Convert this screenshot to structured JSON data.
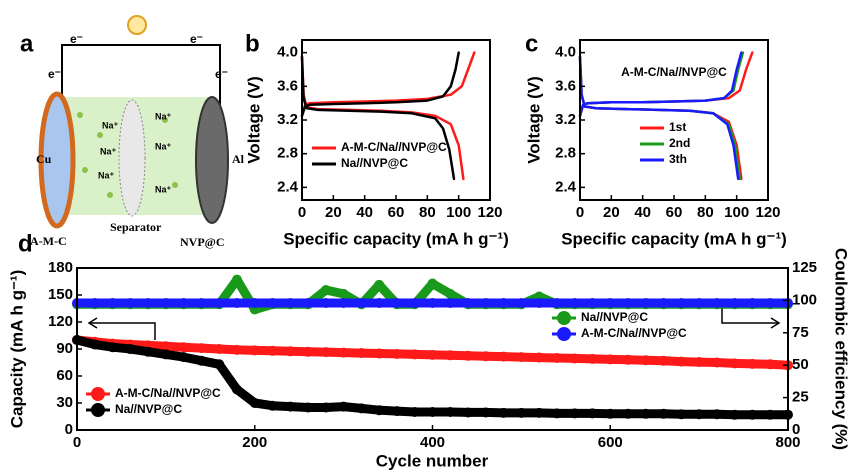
{
  "diagram": {
    "label": "a",
    "electron": "e⁻",
    "sodium": "Na⁺",
    "anode": "Cu",
    "cathode": "Al",
    "separator": "Separator",
    "anode_material": "A-M-C",
    "cathode_material": "NVP@C"
  },
  "chart_data": [
    {
      "type": "line",
      "label": "b",
      "xlabel": "Specific capacity (mA h g⁻¹)",
      "ylabel": "Voltage (V)",
      "xlim": [
        0,
        120
      ],
      "xticks": [
        0,
        20,
        40,
        60,
        80,
        100,
        120
      ],
      "ylim": [
        2.25,
        4.15
      ],
      "yticks": [
        2.4,
        2.8,
        3.2,
        3.6,
        {
          "value": 4,
          "label": "4.0"
        }
      ],
      "series": [
        {
          "name": "A-M-C/Na//NVP@C",
          "color": "#ff1a1a",
          "x": [
            0,
            2,
            5,
            20,
            40,
            60,
            80,
            95,
            102,
            106,
            110,
            null,
            0,
            1,
            3,
            10,
            30,
            50,
            70,
            85,
            95,
            100,
            103
          ],
          "values": [
            3.25,
            3.38,
            3.4,
            3.41,
            3.42,
            3.43,
            3.45,
            3.5,
            3.6,
            3.8,
            4.0,
            null,
            3.95,
            3.5,
            3.35,
            3.33,
            3.32,
            3.31,
            3.29,
            3.25,
            3.15,
            2.9,
            2.5
          ]
        },
        {
          "name": "Na//NVP@C",
          "color": "#000000",
          "x": [
            0,
            2,
            5,
            20,
            40,
            60,
            80,
            90,
            95,
            98,
            100,
            null,
            0,
            1,
            3,
            10,
            30,
            50,
            70,
            85,
            90,
            94,
            97
          ],
          "values": [
            3.25,
            3.36,
            3.38,
            3.39,
            3.4,
            3.41,
            3.43,
            3.48,
            3.6,
            3.8,
            4.0,
            null,
            3.95,
            3.45,
            3.34,
            3.32,
            3.31,
            3.3,
            3.28,
            3.22,
            3.1,
            2.85,
            2.5
          ]
        }
      ]
    },
    {
      "type": "line",
      "label": "c",
      "xlabel": "Specific capacity (mA h g⁻¹)",
      "ylabel": "Voltage (V)",
      "annotation": "A-M-C/Na//NVP@C",
      "xlim": [
        0,
        120
      ],
      "xticks": [
        0,
        20,
        40,
        60,
        80,
        100,
        120
      ],
      "ylim": [
        2.25,
        4.15
      ],
      "yticks": [
        2.4,
        2.8,
        3.2,
        3.6,
        {
          "value": 4,
          "label": "4.0"
        }
      ],
      "series": [
        {
          "name": "1st",
          "color": "#ff1a1a",
          "x": [
            0,
            2,
            5,
            20,
            40,
            60,
            80,
            95,
            102,
            106,
            110,
            null,
            0,
            1,
            3,
            10,
            30,
            50,
            70,
            85,
            95,
            100,
            103
          ],
          "values": [
            3.25,
            3.38,
            3.4,
            3.41,
            3.41,
            3.42,
            3.43,
            3.46,
            3.55,
            3.8,
            4.0,
            null,
            3.95,
            3.5,
            3.36,
            3.34,
            3.33,
            3.32,
            3.31,
            3.28,
            3.18,
            2.9,
            2.5
          ]
        },
        {
          "name": "2nd",
          "color": "#1a9a1a",
          "x": [
            0,
            2,
            5,
            20,
            40,
            60,
            80,
            92,
            98,
            101,
            104,
            null,
            0,
            1,
            3,
            10,
            30,
            50,
            70,
            85,
            95,
            99,
            102
          ],
          "values": [
            3.25,
            3.38,
            3.4,
            3.41,
            3.41,
            3.42,
            3.43,
            3.46,
            3.55,
            3.8,
            4.0,
            null,
            3.95,
            3.5,
            3.36,
            3.34,
            3.33,
            3.32,
            3.31,
            3.28,
            3.15,
            2.9,
            2.5
          ]
        },
        {
          "name": "3th",
          "color": "#1a1aff",
          "x": [
            0,
            2,
            5,
            20,
            40,
            60,
            80,
            92,
            97,
            100,
            103,
            null,
            0,
            1,
            3,
            10,
            30,
            50,
            70,
            85,
            94,
            98,
            101
          ],
          "values": [
            3.25,
            3.38,
            3.4,
            3.41,
            3.41,
            3.42,
            3.43,
            3.46,
            3.55,
            3.8,
            4.0,
            null,
            3.95,
            3.5,
            3.36,
            3.34,
            3.33,
            3.32,
            3.31,
            3.28,
            3.15,
            2.9,
            2.5
          ]
        }
      ]
    },
    {
      "type": "scatter",
      "label": "d",
      "xlabel": "Cycle number",
      "ylabel": "Capacity (mA h g⁻¹)",
      "y2label": "Coulombic efficiency (%)",
      "xlim": [
        0,
        800
      ],
      "xticks": [
        0,
        200,
        400,
        600,
        800
      ],
      "ylim": [
        0,
        180
      ],
      "yticks": [
        0,
        30,
        60,
        90,
        120,
        150,
        180
      ],
      "y2lim": [
        0,
        125
      ],
      "y2ticks": [
        0,
        25,
        50,
        75,
        100,
        125
      ],
      "x": [
        0,
        20,
        40,
        60,
        80,
        100,
        120,
        140,
        160,
        180,
        200,
        220,
        240,
        260,
        280,
        300,
        320,
        340,
        360,
        380,
        400,
        420,
        440,
        460,
        480,
        500,
        520,
        540,
        560,
        580,
        600,
        620,
        640,
        660,
        680,
        700,
        720,
        740,
        760,
        780,
        800
      ],
      "series": [
        {
          "name": "A-M-C/Na//NVP@C",
          "color": "#ff1a1a",
          "values": [
            100,
            98,
            96,
            95,
            94,
            93,
            92,
            91,
            90,
            89,
            88.5,
            88,
            87.5,
            87,
            86.5,
            86,
            85.5,
            85,
            84.5,
            84,
            83.5,
            83,
            82.5,
            82,
            81.5,
            81,
            80.5,
            80,
            79.5,
            79,
            78.5,
            78,
            77.5,
            77,
            76,
            75.5,
            75,
            74,
            73.5,
            73,
            72
          ]
        },
        {
          "name": "Na//NVP@C",
          "color": "#000000",
          "values": [
            100,
            95,
            92,
            90,
            87,
            84,
            81,
            77,
            73,
            45,
            30,
            27,
            26,
            25,
            25,
            26,
            24,
            22,
            21,
            20,
            20,
            20,
            19.5,
            19.5,
            19,
            19,
            19,
            18.5,
            18.5,
            18.5,
            18,
            18,
            18,
            18,
            17.5,
            17.5,
            17.5,
            17,
            17,
            17,
            17
          ]
        },
        {
          "name": "Na//NVP@C",
          "color": "#1a9a1a",
          "axis": "y2",
          "values": [
            97,
            97,
            97,
            97,
            97,
            97,
            97,
            97,
            97,
            116,
            93,
            97,
            97,
            97,
            108,
            105,
            97,
            112,
            97,
            97,
            113,
            105,
            97,
            97,
            97,
            97,
            103,
            97,
            97,
            97,
            97,
            97,
            97,
            97,
            97,
            97,
            97,
            97,
            97,
            97,
            97
          ]
        },
        {
          "name": "A-M-C/Na//NVP@C",
          "color": "#1a1aff",
          "axis": "y2",
          "values": [
            98,
            98,
            98,
            98,
            98,
            98,
            98,
            98,
            98,
            98,
            98,
            98,
            98,
            98,
            98,
            98,
            98,
            98,
            98,
            98,
            98,
            98,
            98,
            98,
            98,
            98,
            98,
            98,
            98,
            98,
            98,
            98,
            98,
            98,
            98,
            98,
            98,
            98,
            98,
            98,
            98
          ]
        }
      ]
    }
  ]
}
